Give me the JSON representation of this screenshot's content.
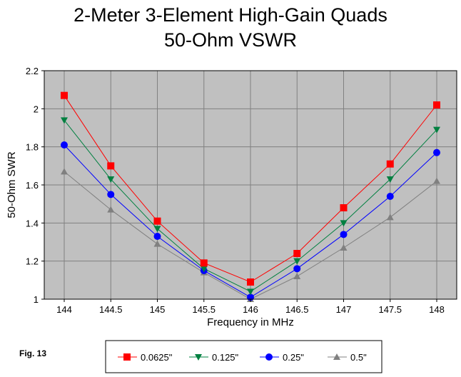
{
  "figure": {
    "title_line1": "2-Meter 3-Element High-Gain Quads",
    "title_line2": "50-Ohm VSWR",
    "fig_label": "Fig. 13"
  },
  "chart_data": {
    "type": "line",
    "title": "2-Meter 3-Element High-Gain Quads 50-Ohm VSWR",
    "xlabel": "Frequency in MHz",
    "ylabel": "50-Ohm SWR",
    "x": [
      144,
      144.5,
      145,
      145.5,
      146,
      146.5,
      147,
      147.5,
      148
    ],
    "x_tick_labels": [
      "144",
      "144.5",
      "145",
      "145.5",
      "146",
      "146.5",
      "147",
      "147.5",
      "148"
    ],
    "ylim": [
      1,
      2.2
    ],
    "y_ticks": [
      1,
      1.2,
      1.4,
      1.6,
      1.8,
      2,
      2.2
    ],
    "y_tick_labels": [
      "1",
      "1.2",
      "1.4",
      "1.6",
      "1.8",
      "2",
      "2.2"
    ],
    "grid": true,
    "legend_position": "bottom",
    "series": [
      {
        "name": "0.0625\"",
        "color": "#ff0000",
        "marker": "square",
        "values": [
          2.07,
          1.7,
          1.41,
          1.19,
          1.09,
          1.24,
          1.48,
          1.71,
          2.02
        ]
      },
      {
        "name": "0.125\"",
        "color": "#008040",
        "marker": "triangle-down",
        "values": [
          1.94,
          1.63,
          1.37,
          1.16,
          1.04,
          1.2,
          1.4,
          1.63,
          1.89
        ]
      },
      {
        "name": "0.25\"",
        "color": "#0000ff",
        "marker": "circle",
        "values": [
          1.81,
          1.55,
          1.33,
          1.15,
          1.01,
          1.16,
          1.34,
          1.54,
          1.77
        ]
      },
      {
        "name": "0.5\"",
        "color": "#808080",
        "marker": "triangle-up",
        "values": [
          1.67,
          1.47,
          1.29,
          1.14,
          1.0,
          1.12,
          1.27,
          1.43,
          1.62
        ]
      }
    ]
  }
}
